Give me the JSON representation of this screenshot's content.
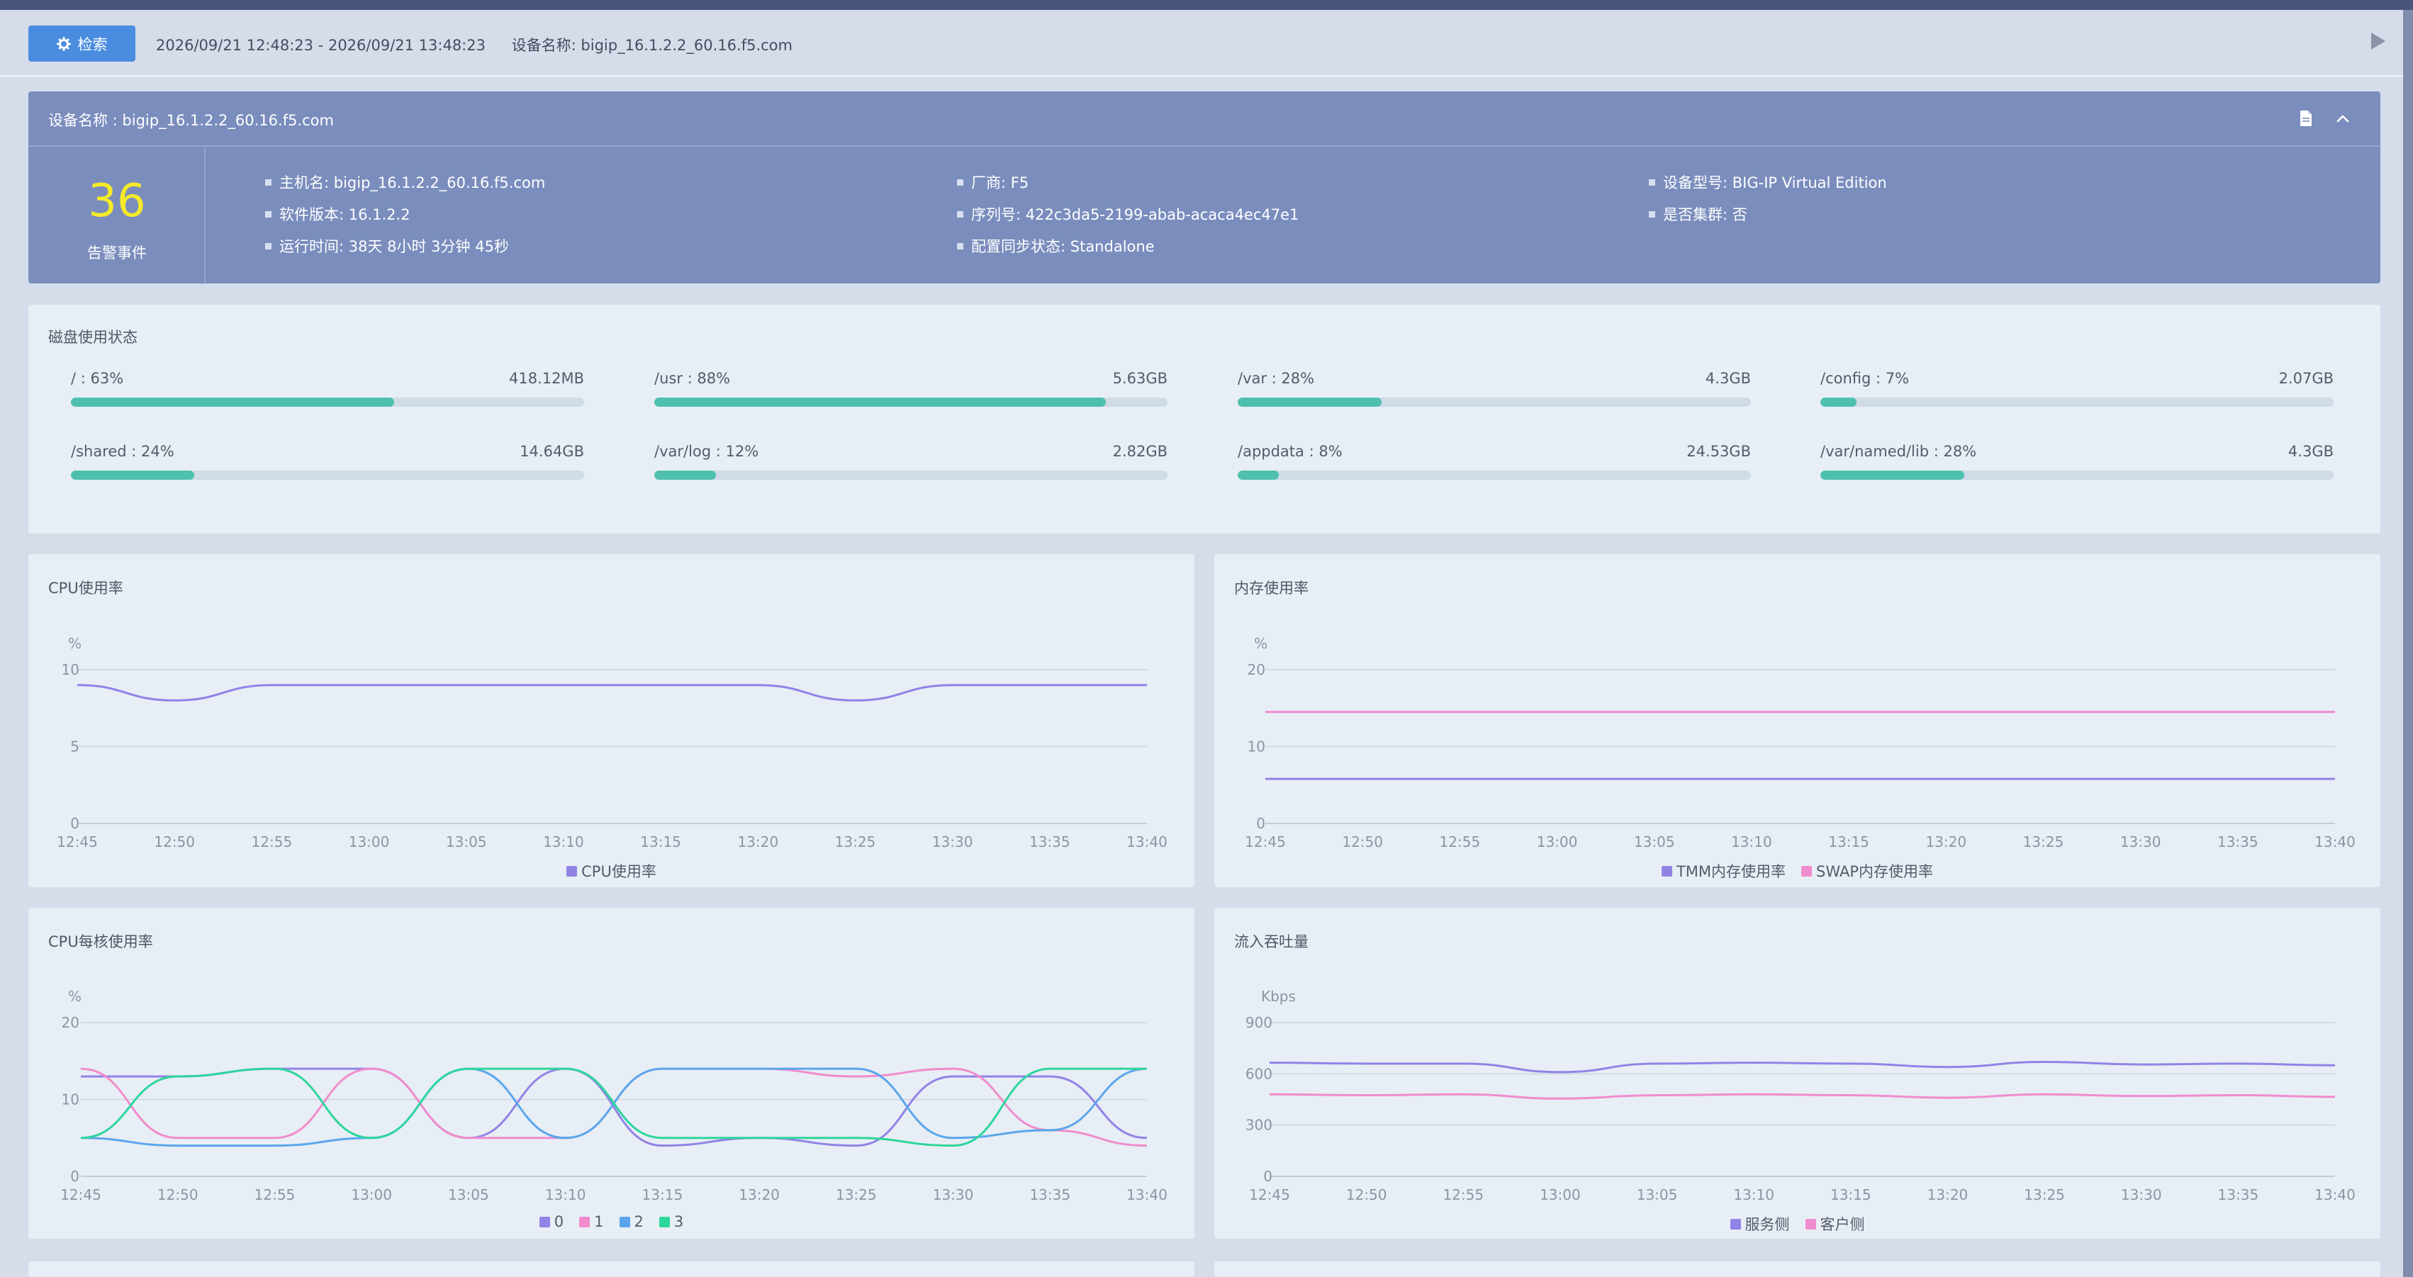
{
  "toolbar": {
    "search_label": "检索",
    "time_range": "2026/09/21 12:48:23 - 2026/09/21 13:48:23",
    "device_label": "设备名称: bigip_16.1.2.2_60.16.f5.com"
  },
  "device": {
    "title": "设备名称 : bigip_16.1.2.2_60.16.f5.com",
    "alarm_count": "36",
    "alarm_label": "告警事件",
    "info": [
      "主机名: bigip_16.1.2.2_60.16.f5.com",
      "厂商: F5",
      "设备型号: BIG-IP Virtual Edition",
      "软件版本: 16.1.2.2",
      "序列号: 422c3da5-2199-abab-acaca4ec47e1",
      "是否集群: 否",
      "运行时间: 38天 8小时 3分钟 45秒",
      "配置同步状态: Standalone"
    ]
  },
  "disk": {
    "title": "磁盘使用状态",
    "items": [
      {
        "label": "/ : 63%",
        "size": "418.12MB",
        "pct": 0.63
      },
      {
        "label": "/usr : 88%",
        "size": "5.63GB",
        "pct": 0.88
      },
      {
        "label": "/var : 28%",
        "size": "4.3GB",
        "pct": 0.28
      },
      {
        "label": "/config : 7%",
        "size": "2.07GB",
        "pct": 0.07
      },
      {
        "label": "/shared : 24%",
        "size": "14.64GB",
        "pct": 0.24
      },
      {
        "label": "/var/log : 12%",
        "size": "2.82GB",
        "pct": 0.12
      },
      {
        "label": "/appdata : 8%",
        "size": "24.53GB",
        "pct": 0.08
      },
      {
        "label": "/var/named/lib : 28%",
        "size": "4.3GB",
        "pct": 0.28
      }
    ]
  },
  "colors": {
    "purple": "#9183e6",
    "pink": "#f08ccd",
    "blue": "#5aa6ec",
    "green": "#2ed69c",
    "disk_fill": "#4fc0ad",
    "alarm": "#f5ea2a"
  },
  "chart_data": [
    {
      "type": "line",
      "title": "CPU使用率",
      "unit": "%",
      "x": [
        "12:45",
        "12:50",
        "12:55",
        "13:00",
        "13:05",
        "13:10",
        "13:15",
        "13:20",
        "13:25",
        "13:30",
        "13:35",
        "13:40"
      ],
      "ylim": [
        0,
        10
      ],
      "yticks": [
        0,
        5,
        10
      ],
      "series": [
        {
          "name": "CPU使用率",
          "color": "#9183e6",
          "values": [
            9,
            8,
            9,
            9,
            9,
            9,
            9,
            9,
            8,
            9,
            9,
            9
          ]
        }
      ]
    },
    {
      "type": "line",
      "title": "内存使用率",
      "unit": "%",
      "x": [
        "12:45",
        "12:50",
        "12:55",
        "13:00",
        "13:05",
        "13:10",
        "13:15",
        "13:20",
        "13:25",
        "13:30",
        "13:35",
        "13:40"
      ],
      "ylim": [
        0,
        20
      ],
      "yticks": [
        0,
        10,
        20
      ],
      "series": [
        {
          "name": "TMM内存使用率",
          "color": "#9183e6",
          "values": [
            5.8,
            5.8,
            5.8,
            5.8,
            5.8,
            5.8,
            5.8,
            5.8,
            5.8,
            5.8,
            5.8,
            5.8
          ]
        },
        {
          "name": "SWAP内存使用率",
          "color": "#f08ccd",
          "values": [
            14.5,
            14.5,
            14.5,
            14.5,
            14.5,
            14.5,
            14.5,
            14.5,
            14.5,
            14.5,
            14.5,
            14.5
          ]
        }
      ]
    },
    {
      "type": "line",
      "title": "CPU每核使用率",
      "unit": "%",
      "x": [
        "12:45",
        "12:50",
        "12:55",
        "13:00",
        "13:05",
        "13:10",
        "13:15",
        "13:20",
        "13:25",
        "13:30",
        "13:35",
        "13:40"
      ],
      "ylim": [
        0,
        20
      ],
      "yticks": [
        0,
        10,
        20
      ],
      "series": [
        {
          "name": "0",
          "color": "#9183e6",
          "values": [
            13,
            13,
            14,
            14,
            5,
            14,
            4,
            5,
            4,
            13,
            13,
            5
          ]
        },
        {
          "name": "1",
          "color": "#f08ccd",
          "values": [
            14,
            5,
            5,
            14,
            5,
            5,
            14,
            14,
            13,
            14,
            6,
            4
          ]
        },
        {
          "name": "2",
          "color": "#5aa6ec",
          "values": [
            5,
            4,
            4,
            5,
            14,
            5,
            14,
            14,
            14,
            5,
            6,
            14
          ]
        },
        {
          "name": "3",
          "color": "#2ed69c",
          "values": [
            5,
            13,
            14,
            5,
            14,
            14,
            5,
            5,
            5,
            4,
            14,
            14
          ]
        }
      ]
    },
    {
      "type": "line",
      "title": "流入吞吐量",
      "unit": "Kbps",
      "x": [
        "12:45",
        "12:50",
        "12:55",
        "13:00",
        "13:05",
        "13:10",
        "13:15",
        "13:20",
        "13:25",
        "13:30",
        "13:35",
        "13:40"
      ],
      "ylim": [
        0,
        900
      ],
      "yticks": [
        0,
        300,
        600,
        900
      ],
      "series": [
        {
          "name": "服务侧",
          "color": "#9183e6",
          "values": [
            665,
            660,
            660,
            610,
            660,
            665,
            660,
            640,
            670,
            655,
            660,
            650
          ]
        },
        {
          "name": "客户侧",
          "color": "#f08ccd",
          "values": [
            480,
            475,
            480,
            455,
            475,
            480,
            475,
            460,
            480,
            470,
            475,
            465
          ]
        }
      ]
    }
  ]
}
